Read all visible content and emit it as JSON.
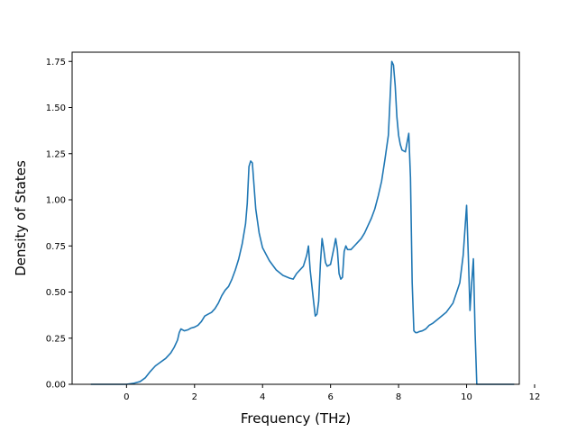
{
  "chart_data": {
    "type": "line",
    "title": "",
    "xlabel": "Frequency (THz)",
    "ylabel": "Density of States",
    "xlim": [
      -1.6,
      11.55
    ],
    "ylim": [
      0.0,
      1.8
    ],
    "xticks": [
      0,
      2,
      4,
      6,
      8,
      10,
      12
    ],
    "xtick_labels": [
      "0",
      "2",
      "4",
      "6",
      "8",
      "10",
      "12"
    ],
    "yticks": [
      0.0,
      0.25,
      0.5,
      0.75,
      1.0,
      1.25,
      1.5,
      1.75
    ],
    "ytick_labels": [
      "0.00",
      "0.25",
      "0.50",
      "0.75",
      "1.00",
      "1.25",
      "1.50",
      "1.75"
    ],
    "grid": false,
    "legend": "none",
    "series": [
      {
        "color": "#1f77b4",
        "x": [
          -1.05,
          -0.5,
          0.0,
          0.2,
          0.4,
          0.55,
          0.7,
          0.85,
          1.0,
          1.15,
          1.3,
          1.4,
          1.5,
          1.55,
          1.6,
          1.7,
          1.8,
          1.9,
          2.0,
          2.1,
          2.2,
          2.3,
          2.4,
          2.5,
          2.6,
          2.7,
          2.8,
          2.9,
          3.0,
          3.1,
          3.2,
          3.3,
          3.4,
          3.5,
          3.55,
          3.6,
          3.65,
          3.7,
          3.8,
          3.9,
          4.0,
          4.2,
          4.4,
          4.6,
          4.8,
          4.9,
          5.0,
          5.2,
          5.3,
          5.35,
          5.4,
          5.5,
          5.55,
          5.6,
          5.65,
          5.7,
          5.75,
          5.8,
          5.85,
          5.9,
          6.0,
          6.1,
          6.15,
          6.2,
          6.25,
          6.3,
          6.35,
          6.4,
          6.45,
          6.5,
          6.55,
          6.6,
          6.7,
          6.8,
          6.9,
          7.0,
          7.1,
          7.2,
          7.3,
          7.4,
          7.5,
          7.6,
          7.7,
          7.8,
          7.85,
          7.9,
          7.95,
          8.0,
          8.05,
          8.1,
          8.2,
          8.3,
          8.35,
          8.4,
          8.45,
          8.5,
          8.55,
          8.6,
          8.7,
          8.8,
          8.9,
          9.0,
          9.2,
          9.4,
          9.6,
          9.8,
          9.9,
          10.0,
          10.05,
          10.1,
          10.15,
          10.2,
          10.25,
          10.3,
          10.35,
          10.4,
          10.45,
          10.5,
          10.8,
          11.4
        ],
        "y": [
          0.0,
          0.0,
          0.0,
          0.005,
          0.015,
          0.035,
          0.07,
          0.1,
          0.12,
          0.14,
          0.17,
          0.2,
          0.24,
          0.28,
          0.3,
          0.29,
          0.295,
          0.305,
          0.31,
          0.32,
          0.34,
          0.37,
          0.38,
          0.39,
          0.41,
          0.44,
          0.48,
          0.51,
          0.53,
          0.57,
          0.62,
          0.68,
          0.76,
          0.87,
          0.98,
          1.18,
          1.21,
          1.2,
          0.95,
          0.82,
          0.74,
          0.67,
          0.62,
          0.59,
          0.575,
          0.57,
          0.6,
          0.64,
          0.7,
          0.75,
          0.62,
          0.45,
          0.37,
          0.38,
          0.45,
          0.65,
          0.79,
          0.73,
          0.66,
          0.64,
          0.65,
          0.74,
          0.79,
          0.73,
          0.6,
          0.57,
          0.58,
          0.72,
          0.75,
          0.73,
          0.73,
          0.73,
          0.75,
          0.77,
          0.79,
          0.82,
          0.86,
          0.9,
          0.95,
          1.02,
          1.1,
          1.22,
          1.35,
          1.75,
          1.73,
          1.62,
          1.45,
          1.35,
          1.3,
          1.27,
          1.26,
          1.36,
          1.12,
          0.55,
          0.29,
          0.28,
          0.28,
          0.285,
          0.29,
          0.3,
          0.32,
          0.33,
          0.36,
          0.39,
          0.44,
          0.55,
          0.7,
          0.97,
          0.7,
          0.4,
          0.55,
          0.68,
          0.28,
          0.0,
          0.0,
          0.0,
          0.0,
          0.0,
          0.0,
          0.0
        ]
      }
    ]
  }
}
